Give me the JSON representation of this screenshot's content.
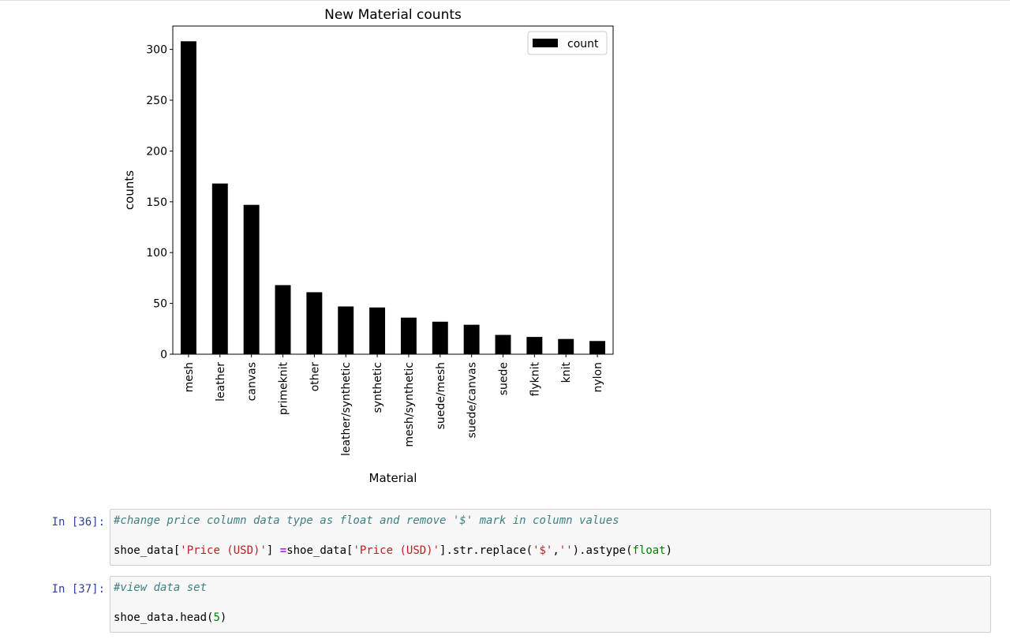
{
  "chart_data": {
    "type": "bar",
    "title": "New Material counts",
    "xlabel": "Material",
    "ylabel": "counts",
    "categories": [
      "mesh",
      "leather",
      "canvas",
      "primeknit",
      "other",
      "leather/synthetic",
      "synthetic",
      "mesh/synthetic",
      "suede/mesh",
      "suede/canvas",
      "suede",
      "flyknit",
      "knit",
      "nylon"
    ],
    "series": [
      {
        "name": "count",
        "values": [
          308,
          168,
          147,
          68,
          61,
          47,
          46,
          36,
          32,
          29,
          19,
          17,
          15,
          13
        ],
        "color": "#000000"
      }
    ],
    "ylim": [
      0,
      323
    ],
    "yticks": [
      0,
      50,
      100,
      150,
      200,
      250,
      300
    ],
    "legend": "top-right",
    "grid": false
  },
  "cells": [
    {
      "prompt": "In [36]:",
      "comment": "#change price column data type as float and remove '$' mark in column values",
      "code": {
        "p1": "shoe_data[",
        "s1": "'Price (USD)'",
        "p2": "] ",
        "op": "=",
        "p3": "shoe_data[",
        "s2": "'Price (USD)'",
        "p4": "].str.replace(",
        "s3": "'$'",
        "p5": ",",
        "s4": "''",
        "p6": ").astype(",
        "b1": "float",
        "p7": ")"
      }
    },
    {
      "prompt": "In [37]:",
      "comment": "#view data set",
      "code": {
        "p1": "shoe_data.head(",
        "n1": "5",
        "p2": ")"
      }
    }
  ]
}
